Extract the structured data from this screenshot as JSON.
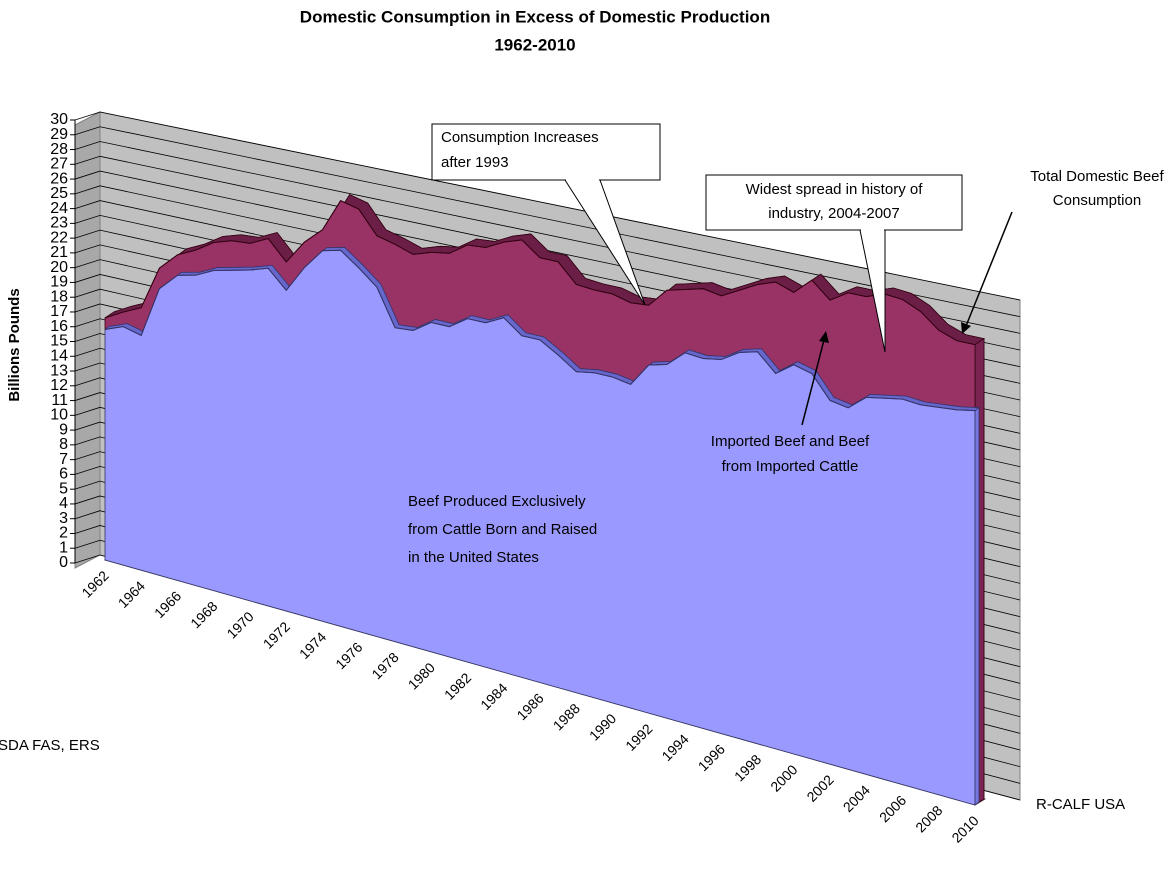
{
  "chart_data": {
    "type": "area3d",
    "title": "Domestic Consumption in Excess of Domestic Production",
    "subtitle": "1962-2010",
    "y_label": "Billions Pounds",
    "categories": [
      "1962",
      null,
      "1964",
      null,
      "1966",
      null,
      "1968",
      null,
      "1970",
      null,
      "1972",
      null,
      "1974",
      null,
      "1976",
      null,
      "1978",
      null,
      "1980",
      null,
      "1982",
      null,
      "1984",
      null,
      "1986",
      null,
      "1988",
      null,
      "1990",
      null,
      "1992",
      null,
      "1994",
      null,
      "1996",
      null,
      "1998",
      null,
      "2000",
      null,
      "2002",
      null,
      "2004",
      null,
      "2006",
      null,
      "2008",
      null,
      "2010"
    ],
    "series": [
      {
        "name": "Beef Produced Exclusively from Cattle Born and Raised in the United States",
        "color": "#9999ff",
        "values": [
          15.9,
          16.4,
          16.1,
          19.6,
          20.8,
          21.1,
          21.7,
          22.0,
          22.3,
          22.7,
          21.5,
          23.3,
          24.7,
          25.0,
          24.1,
          23.1,
          20.7,
          20.8,
          21.6,
          21.6,
          22.4,
          22.4,
          23.0,
          22.1,
          22.1,
          21.4,
          20.6,
          20.8,
          20.8,
          20.6,
          22.1,
          22.4,
          23.4,
          23.3,
          23.5,
          24.2,
          24.5,
          23.4,
          24.2,
          23.9,
          22.5,
          22.3,
          23.2,
          23.4,
          23.6,
          23.5,
          23.6,
          23.7,
          23.9
        ]
      },
      {
        "name": "Imported Beef and Beef from Imported Cattle",
        "color": "#993366",
        "values": [
          0.8,
          1.0,
          1.9,
          1.4,
          1.4,
          1.7,
          1.9,
          2.0,
          1.8,
          2.0,
          1.9,
          1.7,
          1.4,
          3.3,
          3.9,
          3.4,
          5.5,
          5.0,
          4.6,
          4.8,
          4.8,
          4.9,
          4.9,
          6.2,
          5.3,
          6.0,
          5.6,
          5.3,
          5.3,
          5.2,
          3.8,
          4.7,
          4.0,
          4.4,
          4.0,
          3.9,
          4.2,
          5.7,
          4.5,
          5.8,
          6.2,
          7.1,
          6.2,
          6.4,
          6.1,
          5.7,
          4.7,
          4.2,
          4.0
        ]
      }
    ],
    "ylim": [
      0,
      30
    ],
    "yticks": [
      0,
      1,
      2,
      3,
      4,
      5,
      6,
      7,
      8,
      9,
      10,
      11,
      12,
      13,
      14,
      15,
      16,
      17,
      18,
      19,
      20,
      21,
      22,
      23,
      24,
      25,
      26,
      27,
      28,
      29,
      30
    ],
    "grid": true,
    "annotations": [
      {
        "lines": [
          "Consumption Increases",
          "after 1993"
        ]
      },
      {
        "lines": [
          "Widest spread in history of",
          "industry, 2004-2007"
        ]
      },
      {
        "lines": [
          "Total Domestic Beef",
          "Consumption"
        ]
      },
      {
        "lines": [
          "Imported Beef and Beef",
          "from Imported Cattle"
        ]
      },
      {
        "lines": [
          "Beef Produced Exclusively",
          "from Cattle Born and Raised",
          "in the United States"
        ]
      }
    ],
    "source": "SDA FAS, ERS",
    "credit": "R-CALF USA"
  }
}
